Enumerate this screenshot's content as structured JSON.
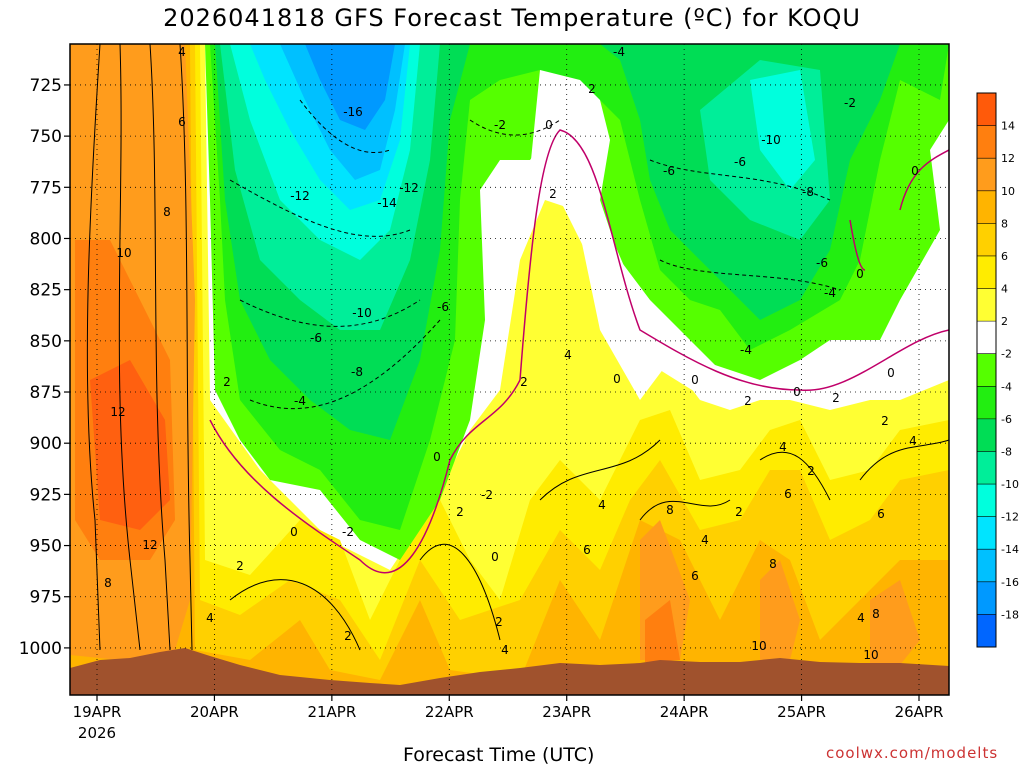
{
  "chart_data": {
    "type": "heatmap",
    "title": "2026041818 GFS Forecast Temperature (ºC) for KOQU",
    "xlabel": "Forecast Time (UTC)",
    "ylabel": "",
    "credit": "coolwx.com/modelts",
    "y_ticks": [
      725,
      750,
      775,
      800,
      825,
      850,
      875,
      900,
      925,
      950,
      975,
      1000
    ],
    "ylim": [
      1023,
      705
    ],
    "x_ticks": [
      "19APR",
      "20APR",
      "21APR",
      "22APR",
      "23APR",
      "24APR",
      "25APR",
      "26APR"
    ],
    "x_year": "2026",
    "colorbar": {
      "ticks": [
        "14",
        "12",
        "10",
        "8",
        "6",
        "4",
        "2",
        "-2",
        "-4",
        "-6",
        "-8",
        "-10",
        "-12",
        "-14",
        "-16",
        "-18"
      ],
      "colors": [
        "#ff5a0a",
        "#ff7f0f",
        "#ff9c1c",
        "#ffb400",
        "#ffd000",
        "#ffec00",
        "#ffff33",
        "#ffffff",
        "#55ff00",
        "#22ee11",
        "#00dd55",
        "#00ee99",
        "#00ffdd",
        "#00e4ff",
        "#00c0ff",
        "#0099ff",
        "#0066ff"
      ]
    },
    "contour_labels": [
      {
        "t": "4",
        "x": 182,
        "y": 52
      },
      {
        "t": "6",
        "x": 182,
        "y": 122
      },
      {
        "t": "8",
        "x": 167,
        "y": 212
      },
      {
        "t": "10",
        "x": 124,
        "y": 253
      },
      {
        "t": "12",
        "x": 118,
        "y": 412
      },
      {
        "t": "12",
        "x": 150,
        "y": 545
      },
      {
        "t": "8",
        "x": 108,
        "y": 583
      },
      {
        "t": "2",
        "x": 227,
        "y": 382
      },
      {
        "t": "2",
        "x": 240,
        "y": 566
      },
      {
        "t": "4",
        "x": 210,
        "y": 618
      },
      {
        "t": "0",
        "x": 294,
        "y": 532
      },
      {
        "t": "-2",
        "x": 348,
        "y": 532
      },
      {
        "t": "2",
        "x": 348,
        "y": 636
      },
      {
        "t": "-16",
        "x": 353,
        "y": 112
      },
      {
        "t": "-12",
        "x": 300,
        "y": 196
      },
      {
        "t": "-12",
        "x": 409,
        "y": 188
      },
      {
        "t": "-14",
        "x": 387,
        "y": 203
      },
      {
        "t": "-10",
        "x": 362,
        "y": 313
      },
      {
        "t": "-6",
        "x": 316,
        "y": 338
      },
      {
        "t": "-8",
        "x": 357,
        "y": 372
      },
      {
        "t": "-4",
        "x": 300,
        "y": 401
      },
      {
        "t": "-6",
        "x": 443,
        "y": 307
      },
      {
        "t": "0",
        "x": 437,
        "y": 457
      },
      {
        "t": "2",
        "x": 460,
        "y": 512
      },
      {
        "t": "-2",
        "x": 487,
        "y": 495
      },
      {
        "t": "0",
        "x": 495,
        "y": 557
      },
      {
        "t": "2",
        "x": 499,
        "y": 622
      },
      {
        "t": "4",
        "x": 505,
        "y": 650
      },
      {
        "t": "-2",
        "x": 500,
        "y": 125
      },
      {
        "t": "0",
        "x": 549,
        "y": 125
      },
      {
        "t": "2",
        "x": 592,
        "y": 89
      },
      {
        "t": "-4",
        "x": 619,
        "y": 52
      },
      {
        "t": "2",
        "x": 553,
        "y": 194
      },
      {
        "t": "4",
        "x": 568,
        "y": 355
      },
      {
        "t": "2",
        "x": 524,
        "y": 382
      },
      {
        "t": "4",
        "x": 602,
        "y": 505
      },
      {
        "t": "6",
        "x": 587,
        "y": 550
      },
      {
        "t": "0",
        "x": 617,
        "y": 379
      },
      {
        "t": "-6",
        "x": 669,
        "y": 171
      },
      {
        "t": "-6",
        "x": 740,
        "y": 162
      },
      {
        "t": "-10",
        "x": 771,
        "y": 140
      },
      {
        "t": "-8",
        "x": 808,
        "y": 192
      },
      {
        "t": "-6",
        "x": 822,
        "y": 263
      },
      {
        "t": "-4",
        "x": 830,
        "y": 293
      },
      {
        "t": "-4",
        "x": 746,
        "y": 350
      },
      {
        "t": "0",
        "x": 695,
        "y": 380
      },
      {
        "t": "2",
        "x": 748,
        "y": 401
      },
      {
        "t": "0",
        "x": 797,
        "y": 392
      },
      {
        "t": "2",
        "x": 836,
        "y": 398
      },
      {
        "t": "-2",
        "x": 850,
        "y": 103
      },
      {
        "t": "0",
        "x": 915,
        "y": 171
      },
      {
        "t": "0",
        "x": 860,
        "y": 274
      },
      {
        "t": "0",
        "x": 891,
        "y": 373
      },
      {
        "t": "2",
        "x": 885,
        "y": 421
      },
      {
        "t": "4",
        "x": 913,
        "y": 441
      },
      {
        "t": "4",
        "x": 783,
        "y": 447
      },
      {
        "t": "2",
        "x": 811,
        "y": 471
      },
      {
        "t": "6",
        "x": 788,
        "y": 494
      },
      {
        "t": "2",
        "x": 739,
        "y": 512
      },
      {
        "t": "4",
        "x": 705,
        "y": 540
      },
      {
        "t": "8",
        "x": 670,
        "y": 510
      },
      {
        "t": "6",
        "x": 695,
        "y": 576
      },
      {
        "t": "8",
        "x": 773,
        "y": 564
      },
      {
        "t": "10",
        "x": 759,
        "y": 646
      },
      {
        "t": "6",
        "x": 881,
        "y": 514
      },
      {
        "t": "4",
        "x": 861,
        "y": 618
      },
      {
        "t": "8",
        "x": 876,
        "y": 614
      },
      {
        "t": "10",
        "x": 871,
        "y": 655
      }
    ]
  }
}
